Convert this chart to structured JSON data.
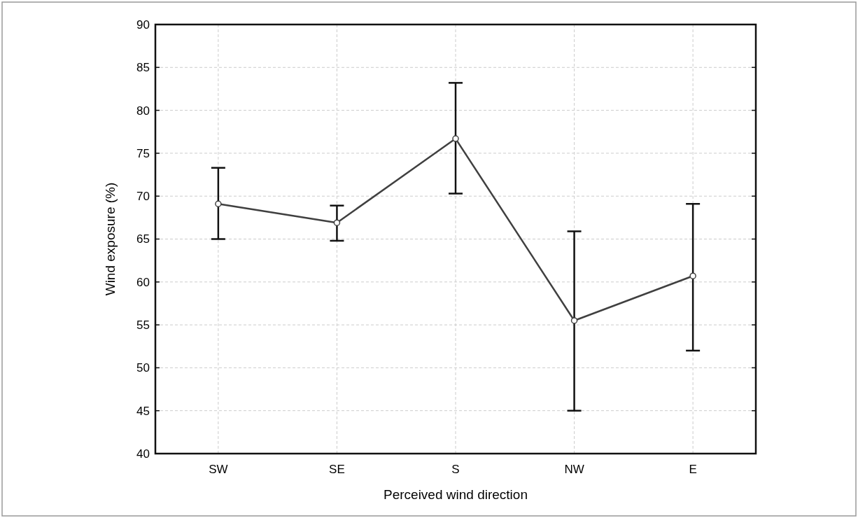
{
  "chart_data": {
    "type": "line",
    "xlabel": "Perceived wind direction",
    "ylabel": "Wind exposure (%)",
    "categories": [
      "SW",
      "SE",
      "S",
      "NW",
      "E"
    ],
    "series": [
      {
        "color": "#404040",
        "values": [
          69.1,
          66.9,
          76.7,
          55.5,
          60.7
        ],
        "errors": [
          [
            65.0,
            73.3
          ],
          [
            64.8,
            68.9
          ],
          [
            70.3,
            83.2
          ],
          [
            45.0,
            65.9
          ],
          [
            52.0,
            69.1
          ]
        ]
      }
    ],
    "ylim": [
      40,
      90
    ],
    "yticks": [
      40,
      45,
      50,
      55,
      60,
      65,
      70,
      75,
      80,
      85,
      90
    ],
    "grid": true,
    "marker": "circle",
    "line_style": "solid"
  }
}
